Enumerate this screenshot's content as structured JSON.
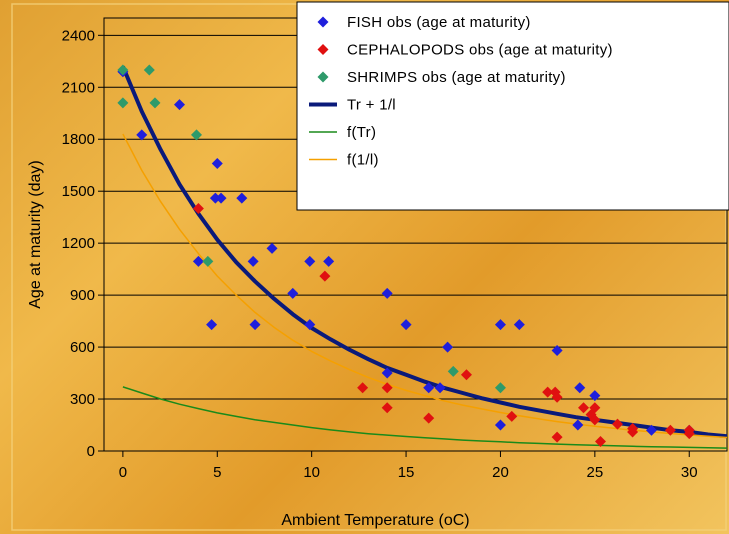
{
  "chart_data": {
    "type": "scatter",
    "title": "",
    "xlabel": "Ambient Temperature (oC)",
    "ylabel": "Age at maturity (day)",
    "xlim": [
      -1,
      32
    ],
    "ylim": [
      0,
      2500
    ],
    "xticks": [
      0,
      5,
      10,
      15,
      20,
      25,
      30
    ],
    "yticks": [
      0,
      300,
      600,
      900,
      1200,
      1500,
      1800,
      2100,
      2400
    ],
    "grid": "horizontal",
    "legend_position": "top-right",
    "series": [
      {
        "name": "FISH obs (age at maturity)",
        "kind": "marker",
        "color": "#1f1fdc",
        "points": [
          [
            0,
            2190
          ],
          [
            1,
            1825
          ],
          [
            3,
            2000
          ],
          [
            4,
            1095
          ],
          [
            4.7,
            730
          ],
          [
            4.9,
            1460
          ],
          [
            5,
            1660
          ],
          [
            5.2,
            1460
          ],
          [
            6.3,
            1460
          ],
          [
            6.9,
            1095
          ],
          [
            7,
            730
          ],
          [
            7.9,
            1170
          ],
          [
            9,
            910
          ],
          [
            9.9,
            730
          ],
          [
            9.9,
            1095
          ],
          [
            10.9,
            1095
          ],
          [
            14,
            910
          ],
          [
            14,
            450
          ],
          [
            15,
            730
          ],
          [
            16.2,
            365
          ],
          [
            16.8,
            365
          ],
          [
            17.2,
            600
          ],
          [
            20,
            730
          ],
          [
            20,
            150
          ],
          [
            21,
            730
          ],
          [
            23,
            580
          ],
          [
            24.1,
            150
          ],
          [
            24.2,
            365
          ],
          [
            25,
            320
          ],
          [
            28,
            120
          ],
          [
            30,
            120
          ]
        ]
      },
      {
        "name": "CEPHALOPODS obs (age at maturity)",
        "kind": "marker",
        "color": "#e01010",
        "points": [
          [
            4,
            1400
          ],
          [
            10.7,
            1010
          ],
          [
            12.7,
            365
          ],
          [
            14,
            365
          ],
          [
            14,
            250
          ],
          [
            16.2,
            190
          ],
          [
            18.2,
            440
          ],
          [
            20.6,
            200
          ],
          [
            22.5,
            340
          ],
          [
            22.9,
            340
          ],
          [
            23,
            310
          ],
          [
            23,
            80
          ],
          [
            24.4,
            250
          ],
          [
            24.8,
            210
          ],
          [
            25,
            250
          ],
          [
            25,
            180
          ],
          [
            25.3,
            55
          ],
          [
            26.2,
            155
          ],
          [
            27,
            110
          ],
          [
            27,
            130
          ],
          [
            29,
            120
          ],
          [
            30,
            120
          ],
          [
            30,
            100
          ]
        ]
      },
      {
        "name": "SHRIMPS obs (age at maturity)",
        "kind": "marker",
        "color": "#2e9a6a",
        "points": [
          [
            0,
            2200
          ],
          [
            0,
            2010
          ],
          [
            1.4,
            2200
          ],
          [
            1.7,
            2010
          ],
          [
            3.9,
            1825
          ],
          [
            4.5,
            1095
          ],
          [
            17.5,
            460
          ],
          [
            20,
            365
          ]
        ]
      },
      {
        "name": "Tr + 1/l",
        "kind": "line",
        "color": "#0a1a7a",
        "x": [
          0,
          1,
          2,
          3,
          4,
          5,
          6,
          7,
          8,
          9,
          10,
          11,
          12,
          13,
          14,
          15,
          16,
          17,
          18,
          19,
          20,
          21,
          22,
          23,
          24,
          25,
          26,
          27,
          28,
          29,
          30,
          31,
          32
        ],
        "values": [
          2220,
          1960,
          1740,
          1540,
          1370,
          1220,
          1090,
          980,
          880,
          790,
          710,
          645,
          585,
          530,
          480,
          440,
          400,
          365,
          335,
          305,
          280,
          255,
          235,
          215,
          195,
          180,
          165,
          150,
          135,
          120,
          110,
          95,
          85
        ]
      },
      {
        "name": "f(Tr)",
        "kind": "line",
        "color": "#1a8a1a",
        "x": [
          0,
          1,
          2,
          3,
          4,
          5,
          6,
          7,
          8,
          9,
          10,
          11,
          12,
          13,
          14,
          15,
          16,
          17,
          18,
          19,
          20,
          21,
          22,
          23,
          24,
          25,
          26,
          27,
          28,
          29,
          30,
          31,
          32
        ],
        "values": [
          370,
          335,
          300,
          270,
          245,
          220,
          200,
          180,
          165,
          150,
          135,
          122,
          110,
          100,
          92,
          84,
          76,
          70,
          63,
          58,
          53,
          48,
          44,
          40,
          36,
          33,
          30,
          27,
          25,
          23,
          21,
          19,
          17
        ]
      },
      {
        "name": "f(1/l)",
        "kind": "line",
        "color": "#f5a000",
        "x": [
          0,
          1,
          2,
          3,
          4,
          5,
          6,
          7,
          8,
          9,
          10,
          11,
          12,
          13,
          14,
          15,
          16,
          17,
          18,
          19,
          20,
          21,
          22,
          23,
          24,
          25,
          26,
          27,
          28,
          29,
          30,
          31,
          32
        ],
        "values": [
          1830,
          1620,
          1440,
          1280,
          1140,
          1010,
          900,
          800,
          715,
          640,
          575,
          520,
          470,
          425,
          385,
          350,
          320,
          290,
          265,
          243,
          222,
          203,
          186,
          170,
          156,
          143,
          131,
          120,
          110,
          101,
          93,
          85,
          78
        ]
      }
    ]
  }
}
